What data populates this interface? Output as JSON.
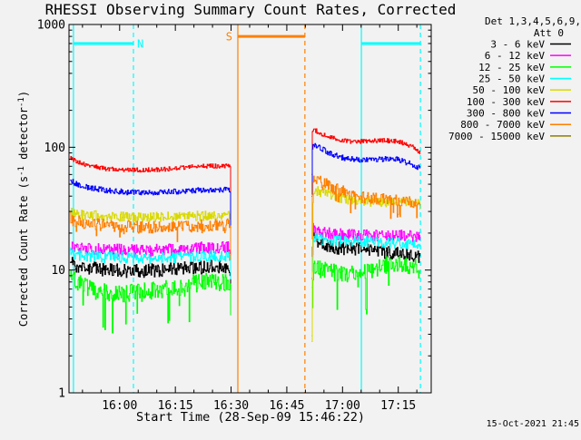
{
  "background_color": "#f2f2f2",
  "chart_data": {
    "type": "line",
    "title": "RHESSI Observing Summary Count Rates, Corrected",
    "xlabel": "Start Time (28-Sep-09 15:46:22)",
    "ylabel": "Corrected Count Rate (s-1 detector-1)",
    "ylabel_parts": {
      "p1": "Corrected Count Rate (s",
      "sup1": "-1",
      "p2": " detector",
      "sup2": "-1",
      "p3": ")"
    },
    "timestamp": "15-Oct-2021 21:45",
    "background_color": "#f2f2f2",
    "frame_color": "#000000",
    "x_axis": {
      "min_minutes": 0,
      "max_minutes": 97.5,
      "start_time": "15:46:22",
      "major_ticks": [
        {
          "t": 13.63,
          "label": "16:00"
        },
        {
          "t": 28.63,
          "label": "16:15"
        },
        {
          "t": 43.63,
          "label": "16:30"
        },
        {
          "t": 58.63,
          "label": "16:45"
        },
        {
          "t": 73.63,
          "label": "17:00"
        },
        {
          "t": 88.63,
          "label": "17:15"
        }
      ],
      "minor_ticks": [
        3.63,
        8.63,
        18.63,
        23.63,
        33.63,
        38.63,
        48.63,
        53.63,
        63.63,
        68.63,
        78.63,
        83.63,
        93.63
      ]
    },
    "y_axis": {
      "scale": "log",
      "min": 1,
      "max": 1000,
      "major_ticks": [
        {
          "v": 1,
          "label": "1"
        },
        {
          "v": 10,
          "label": "10"
        },
        {
          "v": 100,
          "label": "100"
        },
        {
          "v": 1000,
          "label": "1000"
        }
      ]
    },
    "legend": {
      "header_line1": "Det 1,3,4,5,6,9,",
      "header_line2": "Att 0",
      "entries": [
        {
          "label": "3 - 6 keV",
          "color": "#000000"
        },
        {
          "label": "6 - 12 keV",
          "color": "#ff00ff"
        },
        {
          "label": "12 - 25 keV",
          "color": "#00ff00"
        },
        {
          "label": "25 - 50 keV",
          "color": "#00ffff"
        },
        {
          "label": "50 - 100 keV",
          "color": "#d9d900"
        },
        {
          "label": "100 - 300 keV",
          "color": "#ff0000"
        },
        {
          "label": "300 - 800 keV",
          "color": "#0000ff"
        },
        {
          "label": "800 - 7000 keV",
          "color": "#ff8000"
        },
        {
          "label": "7000 - 15000 keV",
          "color": "#8b8000"
        }
      ]
    },
    "flags": [
      {
        "label": "N",
        "color": "#00ffff",
        "t_start": 1.2,
        "t_end": 17.35,
        "level": 700,
        "label_side": "after_end"
      },
      {
        "label": "S",
        "color": "#ff8000",
        "t_start": 45.45,
        "t_end": 63.5,
        "level": 800,
        "label_side": "before_start"
      },
      {
        "label": "",
        "color": "#00ffff",
        "t_start": 78.7,
        "t_end": 94.6,
        "level": 700,
        "label_side": "none"
      }
    ],
    "series": [
      {
        "name": "3 - 6 keV",
        "color": "#000000",
        "noise": 0.055,
        "segments": [
          {
            "points": [
              [
                0.3,
                11.5
              ],
              [
                2,
                10.8
              ],
              [
                8,
                10.2
              ],
              [
                15,
                9.8
              ],
              [
                22,
                9.9
              ],
              [
                30,
                10.3
              ],
              [
                38,
                10.6
              ],
              [
                43.3,
                10.6
              ],
              [
                43.5,
                7
              ]
            ]
          },
          {
            "points": [
              [
                65.3,
                9
              ],
              [
                65.6,
                21
              ],
              [
                67,
                17
              ],
              [
                70,
                15.5
              ],
              [
                75,
                15
              ],
              [
                80,
                14.5
              ],
              [
                85,
                14
              ],
              [
                90,
                13.3
              ],
              [
                93,
                13
              ],
              [
                94.2,
                12.6
              ],
              [
                94.6,
                12
              ]
            ]
          }
        ]
      },
      {
        "name": "6 - 12 keV",
        "color": "#ff00ff",
        "noise": 0.05,
        "segments": [
          {
            "points": [
              [
                0.3,
                16
              ],
              [
                3,
                15.2
              ],
              [
                10,
                14.6
              ],
              [
                20,
                14.3
              ],
              [
                30,
                14.8
              ],
              [
                38,
                15.2
              ],
              [
                43.3,
                15.2
              ],
              [
                43.5,
                9
              ]
            ]
          },
          {
            "points": [
              [
                65.3,
                9
              ],
              [
                65.6,
                22
              ],
              [
                67,
                20.5
              ],
              [
                72,
                19.5
              ],
              [
                80,
                19.2
              ],
              [
                88,
                19
              ],
              [
                94.3,
                18.8
              ],
              [
                94.6,
                17
              ]
            ]
          }
        ]
      },
      {
        "name": "12 - 25 keV",
        "color": "#00ff00",
        "noise": 0.075,
        "spike_prob": 0.07,
        "spike_depth": 0.3,
        "segments": [
          {
            "points": [
              [
                0.3,
                9.2
              ],
              [
                2,
                8.2
              ],
              [
                5,
                7.2
              ],
              [
                10,
                6.6
              ],
              [
                15,
                6.4
              ],
              [
                20,
                6.6
              ],
              [
                27,
                7.1
              ],
              [
                33,
                7.7
              ],
              [
                38,
                8
              ],
              [
                43.3,
                8.1
              ],
              [
                43.5,
                5
              ]
            ]
          },
          {
            "points": [
              [
                65.3,
                3.2
              ],
              [
                65.7,
                10.8
              ],
              [
                68,
                10
              ],
              [
                72,
                9.3
              ],
              [
                75,
                9
              ],
              [
                78,
                9.3
              ],
              [
                82,
                10.2
              ],
              [
                85,
                11
              ],
              [
                88,
                11.4
              ],
              [
                91,
                11.2
              ],
              [
                93,
                10.7
              ],
              [
                94.4,
                10
              ],
              [
                94.6,
                8.5
              ]
            ]
          }
        ]
      },
      {
        "name": "25 - 50 keV",
        "color": "#00ffff",
        "noise": 0.045,
        "segments": [
          {
            "points": [
              [
                0.3,
                14
              ],
              [
                3,
                13.2
              ],
              [
                10,
                12.7
              ],
              [
                20,
                12.4
              ],
              [
                30,
                12.7
              ],
              [
                38,
                13
              ],
              [
                43.3,
                13.1
              ],
              [
                43.5,
                8
              ]
            ]
          },
          {
            "points": [
              [
                65.3,
                8
              ],
              [
                65.6,
                18.5
              ],
              [
                68,
                17.8
              ],
              [
                72,
                17.3
              ],
              [
                78,
                17
              ],
              [
                85,
                16.8
              ],
              [
                90,
                16.5
              ],
              [
                94.3,
                16.2
              ],
              [
                94.6,
                14
              ]
            ]
          }
        ]
      },
      {
        "name": "50 - 100 keV",
        "color": "#d9d900",
        "noise": 0.04,
        "segments": [
          {
            "points": [
              [
                0.3,
                30
              ],
              [
                3,
                28.5
              ],
              [
                10,
                27.3
              ],
              [
                20,
                26.8
              ],
              [
                30,
                27.3
              ],
              [
                38,
                27.8
              ],
              [
                43.3,
                28
              ],
              [
                43.5,
                14
              ]
            ]
          },
          {
            "points": [
              [
                65.3,
                2.8
              ],
              [
                65.7,
                46
              ],
              [
                67,
                44
              ],
              [
                70,
                41
              ],
              [
                73,
                38.5
              ],
              [
                77,
                36.8
              ],
              [
                82,
                36
              ],
              [
                88,
                35.5
              ],
              [
                92,
                35
              ],
              [
                94.4,
                34.5
              ],
              [
                94.6,
                30
              ]
            ]
          }
        ]
      },
      {
        "name": "100 - 300 keV",
        "color": "#ff0000",
        "noise": 0.018,
        "segments": [
          {
            "points": [
              [
                0.3,
                83
              ],
              [
                2,
                76
              ],
              [
                5,
                71
              ],
              [
                10,
                67
              ],
              [
                16,
                65.5
              ],
              [
                22,
                65.5
              ],
              [
                28,
                67
              ],
              [
                32,
                69
              ],
              [
                36,
                70
              ],
              [
                40,
                70.5
              ],
              [
                43.3,
                71
              ],
              [
                43.5,
                42
              ]
            ]
          },
          {
            "points": [
              [
                65.3,
                60
              ],
              [
                65.5,
                141
              ],
              [
                66.5,
                136
              ],
              [
                68,
                128
              ],
              [
                70,
                121
              ],
              [
                72,
                116
              ],
              [
                74,
                113
              ],
              [
                77,
                111
              ],
              [
                80,
                112
              ],
              [
                83,
                113
              ],
              [
                86,
                113
              ],
              [
                88,
                112
              ],
              [
                90,
                108
              ],
              [
                92,
                102
              ],
              [
                93.5,
                96
              ],
              [
                94.4,
                89
              ],
              [
                94.6,
                82
              ]
            ]
          }
        ]
      },
      {
        "name": "300 - 800 keV",
        "color": "#0000ff",
        "noise": 0.022,
        "segments": [
          {
            "points": [
              [
                0.3,
                54
              ],
              [
                2,
                50
              ],
              [
                5,
                47
              ],
              [
                10,
                44.5
              ],
              [
                16,
                43
              ],
              [
                22,
                42.8
              ],
              [
                28,
                43.5
              ],
              [
                33,
                44.5
              ],
              [
                38,
                45
              ],
              [
                43.3,
                45
              ],
              [
                43.5,
                22
              ]
            ]
          },
          {
            "points": [
              [
                65.3,
                40
              ],
              [
                65.5,
                108
              ],
              [
                66.5,
                103
              ],
              [
                68,
                97
              ],
              [
                70,
                90
              ],
              [
                72,
                85
              ],
              [
                74,
                81.5
              ],
              [
                77,
                79.5
              ],
              [
                80,
                79
              ],
              [
                84,
                80
              ],
              [
                87,
                80.5
              ],
              [
                89,
                79
              ],
              [
                91,
                75
              ],
              [
                93,
                71
              ],
              [
                94.4,
                68
              ],
              [
                94.6,
                60
              ]
            ]
          }
        ]
      },
      {
        "name": "800 - 7000 keV",
        "color": "#ff8000",
        "noise": 0.05,
        "spike_prob": 0.05,
        "spike_depth": 0.15,
        "segments": [
          {
            "points": [
              [
                0.3,
                26
              ],
              [
                3,
                24.5
              ],
              [
                10,
                23
              ],
              [
                20,
                22.3
              ],
              [
                30,
                22.8
              ],
              [
                38,
                23.2
              ],
              [
                43.3,
                23.4
              ],
              [
                43.5,
                12
              ]
            ]
          },
          {
            "points": [
              [
                65.3,
                20
              ],
              [
                65.6,
                57
              ],
              [
                67,
                54
              ],
              [
                69,
                50
              ],
              [
                71,
                46.5
              ],
              [
                74,
                43
              ],
              [
                77,
                40.5
              ],
              [
                80,
                39
              ],
              [
                84,
                38
              ],
              [
                88,
                37.3
              ],
              [
                91,
                36.5
              ],
              [
                93,
                35.5
              ],
              [
                94.4,
                34
              ],
              [
                94.6,
                30
              ]
            ]
          }
        ]
      },
      {
        "name": "7000 - 15000 keV",
        "color": "#8b8000",
        "noise": 0,
        "segments": []
      }
    ]
  }
}
